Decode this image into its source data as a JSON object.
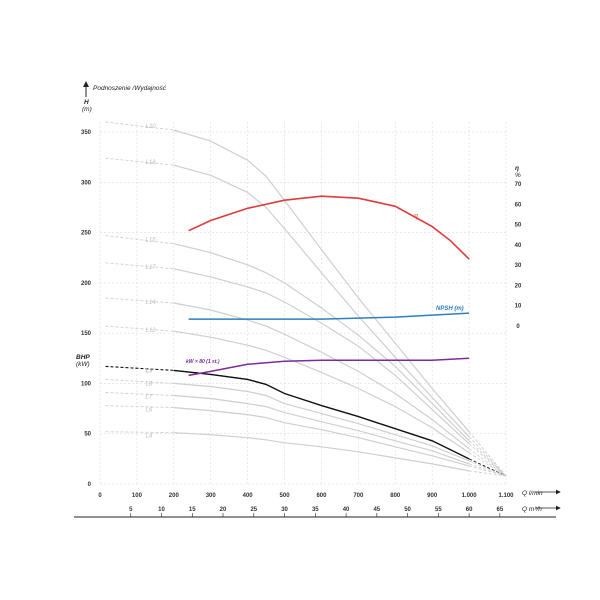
{
  "chart_data": {
    "type": "line",
    "title": "Podnoszenie /Wydajność",
    "y_left": {
      "label": "H",
      "unit": "(m)",
      "ticks": [
        0,
        50,
        100,
        150,
        200,
        250,
        300,
        350
      ],
      "range": [
        0,
        360
      ]
    },
    "y_right": {
      "label": "η",
      "unit": "%",
      "ticks": [
        0,
        10,
        20,
        30,
        40,
        50,
        60,
        70
      ]
    },
    "bhp_axis": {
      "label": "BHP",
      "unit": "(kW)"
    },
    "x_top_axis": {
      "label": "Q l/min",
      "ticks": [
        "0",
        "100",
        "200",
        "300",
        "400",
        "500",
        "600",
        "700",
        "800",
        "900",
        "1.000",
        "1.100"
      ],
      "range": [
        0,
        1100
      ]
    },
    "x_bottom_axis": {
      "label": "Q m³/h",
      "ticks": [
        "5",
        "10",
        "15",
        "20",
        "25",
        "30",
        "35",
        "40",
        "45",
        "50",
        "55",
        "60",
        "65"
      ]
    },
    "head_curves": [
      {
        "name": "L20",
        "points": [
          [
            15,
            360
          ],
          [
            200,
            352
          ],
          [
            300,
            341
          ],
          [
            400,
            322
          ],
          [
            450,
            306
          ],
          [
            500,
            282
          ],
          [
            600,
            233
          ],
          [
            700,
            185
          ],
          [
            800,
            140
          ],
          [
            900,
            95
          ],
          [
            1000,
            52
          ],
          [
            1100,
            8
          ]
        ]
      },
      {
        "name": "L18",
        "points": [
          [
            15,
            324
          ],
          [
            200,
            317
          ],
          [
            300,
            307
          ],
          [
            400,
            290
          ],
          [
            450,
            275
          ],
          [
            500,
            254
          ],
          [
            600,
            210
          ],
          [
            700,
            167
          ],
          [
            800,
            126
          ],
          [
            900,
            86
          ],
          [
            1000,
            47
          ],
          [
            1100,
            8
          ]
        ]
      },
      {
        "name": "L15",
        "points": [
          [
            15,
            247
          ],
          [
            200,
            239
          ],
          [
            300,
            230
          ],
          [
            400,
            218
          ],
          [
            450,
            210
          ],
          [
            500,
            200
          ],
          [
            600,
            175
          ],
          [
            700,
            148
          ],
          [
            800,
            117
          ],
          [
            900,
            80
          ],
          [
            1000,
            43
          ],
          [
            1100,
            8
          ]
        ]
      },
      {
        "name": "L17",
        "points": [
          [
            15,
            220
          ],
          [
            200,
            214
          ],
          [
            300,
            206
          ],
          [
            400,
            196
          ],
          [
            450,
            190
          ],
          [
            500,
            181
          ],
          [
            600,
            160
          ],
          [
            700,
            137
          ],
          [
            800,
            108
          ],
          [
            900,
            74
          ],
          [
            1000,
            40
          ],
          [
            1100,
            8
          ]
        ]
      },
      {
        "name": "L14",
        "points": [
          [
            15,
            185
          ],
          [
            200,
            180
          ],
          [
            300,
            173
          ],
          [
            400,
            163
          ],
          [
            450,
            157
          ],
          [
            500,
            149
          ],
          [
            600,
            131
          ],
          [
            700,
            112
          ],
          [
            800,
            90
          ],
          [
            900,
            64
          ],
          [
            1000,
            35
          ],
          [
            1100,
            8
          ]
        ]
      },
      {
        "name": "L12",
        "points": [
          [
            15,
            157
          ],
          [
            200,
            152
          ],
          [
            300,
            146
          ],
          [
            400,
            138
          ],
          [
            450,
            133
          ],
          [
            500,
            126
          ],
          [
            600,
            111
          ],
          [
            700,
            95
          ],
          [
            800,
            77
          ],
          [
            900,
            56
          ],
          [
            1000,
            31
          ],
          [
            1100,
            8
          ]
        ]
      },
      {
        "name": "L9",
        "points": [
          [
            15,
            117
          ],
          [
            200,
            113
          ],
          [
            300,
            109
          ],
          [
            400,
            104
          ],
          [
            450,
            99
          ],
          [
            500,
            90
          ],
          [
            600,
            78
          ],
          [
            700,
            67
          ],
          [
            800,
            55
          ],
          [
            900,
            43
          ],
          [
            1000,
            25
          ],
          [
            1100,
            8
          ]
        ]
      },
      {
        "name": "L8",
        "points": [
          [
            15,
            104
          ],
          [
            200,
            100
          ],
          [
            300,
            97
          ],
          [
            400,
            92
          ],
          [
            450,
            88
          ],
          [
            500,
            80
          ],
          [
            600,
            70
          ],
          [
            700,
            60
          ],
          [
            800,
            49
          ],
          [
            900,
            38
          ],
          [
            1000,
            23
          ],
          [
            1100,
            8
          ]
        ]
      },
      {
        "name": "L7",
        "points": [
          [
            15,
            91
          ],
          [
            200,
            88
          ],
          [
            300,
            85
          ],
          [
            400,
            80
          ],
          [
            450,
            77
          ],
          [
            500,
            71
          ],
          [
            600,
            62
          ],
          [
            700,
            53
          ],
          [
            800,
            43
          ],
          [
            900,
            33
          ],
          [
            1000,
            20
          ],
          [
            1100,
            8
          ]
        ]
      },
      {
        "name": "L6",
        "points": [
          [
            15,
            78
          ],
          [
            200,
            76
          ],
          [
            300,
            73
          ],
          [
            400,
            69
          ],
          [
            450,
            66
          ],
          [
            500,
            61
          ],
          [
            600,
            54
          ],
          [
            700,
            46
          ],
          [
            800,
            37
          ],
          [
            900,
            28
          ],
          [
            1000,
            18
          ],
          [
            1100,
            8
          ]
        ]
      },
      {
        "name": "L4",
        "points": [
          [
            15,
            52
          ],
          [
            200,
            51
          ],
          [
            300,
            49
          ],
          [
            400,
            46
          ],
          [
            450,
            44
          ],
          [
            500,
            41
          ],
          [
            600,
            37
          ],
          [
            700,
            32
          ],
          [
            800,
            26
          ],
          [
            900,
            20
          ],
          [
            1000,
            13
          ],
          [
            1100,
            8
          ]
        ]
      }
    ],
    "efficiency": {
      "name": "η",
      "points": [
        [
          240,
          47
        ],
        [
          300,
          52
        ],
        [
          400,
          58
        ],
        [
          500,
          62
        ],
        [
          600,
          64
        ],
        [
          700,
          63
        ],
        [
          800,
          59
        ],
        [
          900,
          49
        ],
        [
          950,
          42
        ],
        [
          1000,
          33
        ]
      ]
    },
    "npsh": {
      "name": "NPSH (m)",
      "points": [
        [
          240,
          164
        ],
        [
          400,
          164
        ],
        [
          600,
          164
        ],
        [
          700,
          165
        ],
        [
          800,
          166
        ],
        [
          900,
          168
        ],
        [
          1000,
          170
        ]
      ]
    },
    "power": {
      "name": "kW × 80 (1 st.)",
      "points": [
        [
          240,
          108
        ],
        [
          300,
          112
        ],
        [
          400,
          119
        ],
        [
          500,
          122
        ],
        [
          600,
          123
        ],
        [
          700,
          123
        ],
        [
          800,
          123
        ],
        [
          900,
          123
        ],
        [
          1000,
          125
        ]
      ]
    },
    "selected_curve": "L9",
    "colors": {
      "grid": "#dcdcdc",
      "head": "#cfcfcf",
      "selected": "#111111",
      "efficiency": "#e03a3a",
      "npsh": "#2e7ec4",
      "power": "#7a2c9e"
    }
  }
}
